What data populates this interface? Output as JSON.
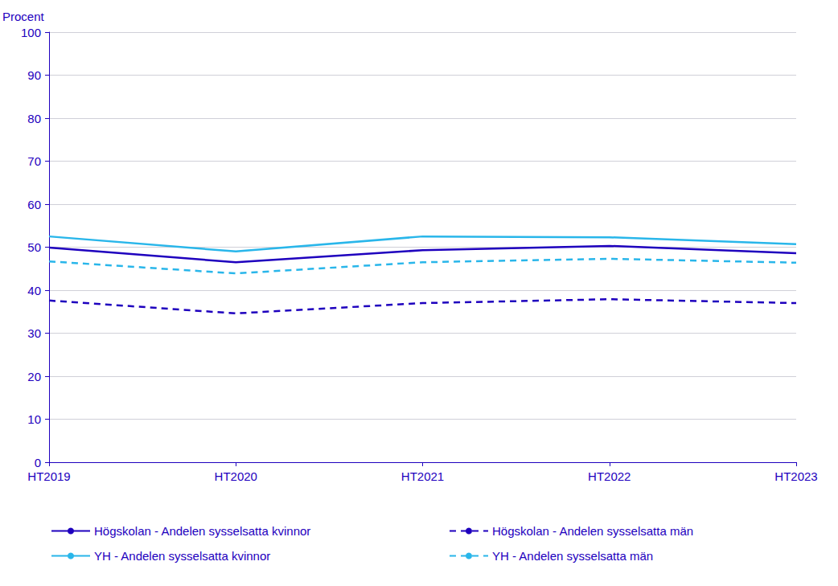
{
  "chart_data": {
    "type": "line",
    "y_label": "Procent",
    "categories": [
      "HT2019",
      "HT2020",
      "HT2021",
      "HT2022",
      "HT2023"
    ],
    "ylim": [
      0,
      100
    ],
    "yticks": [
      0,
      10,
      20,
      30,
      40,
      50,
      60,
      70,
      80,
      90,
      100
    ],
    "grid": true,
    "legend": "bottom",
    "series": [
      {
        "name": "Högskolan - Andelen sysselsatta kvinnor",
        "color": "#1e00be",
        "line_style": "solid",
        "values": [
          49.9,
          46.5,
          49.3,
          50.3,
          48.6
        ]
      },
      {
        "name": "Högskolan - Andelen sysselsatta män",
        "color": "#1e00be",
        "line_style": "dashed",
        "values": [
          37.6,
          34.6,
          37.0,
          37.9,
          37.0
        ]
      },
      {
        "name": "YH - Andelen sysselsatta kvinnor",
        "color": "#29b6ea",
        "line_style": "solid",
        "values": [
          52.5,
          49.0,
          52.5,
          52.3,
          50.7
        ]
      },
      {
        "name": "YH - Andelen sysselsatta män",
        "color": "#29b6ea",
        "line_style": "dashed",
        "values": [
          46.7,
          43.9,
          46.5,
          47.3,
          46.4
        ]
      }
    ]
  }
}
